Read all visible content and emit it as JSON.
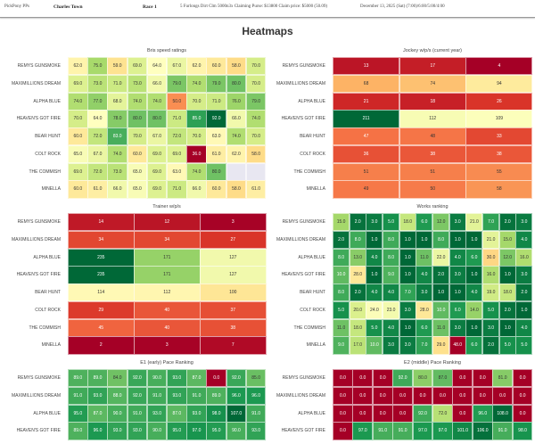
{
  "header": {
    "app": "PickPony PPs",
    "track": "Charles Town",
    "race": "Race 1",
    "conditions": "5 Furlongs Dirt Clm 5000n3x Claiming Purse: $13800 Claim price: $5000 (50.09)",
    "date": "December 13, 2025 (Sat) (7:00)/6:00/5:00/4:00"
  },
  "page_title": "Heatmaps",
  "colormap": "RdYlGn",
  "missing_color": "#e8e7f1",
  "heatmaps": [
    {
      "title": "Bris speed ratings",
      "rows": [
        "REMYS GUNSMOKE",
        "MAXIMILLIONS DREAM",
        "ALPHA BLUE",
        "HEAVEN'S GOT FIRE",
        "BEAR HUNT",
        "COLT ROCK",
        "THE COMMISH",
        "MINELLA"
      ],
      "decimals": 1,
      "reverse": false,
      "values": [
        [
          62,
          75,
          59,
          69,
          64,
          67,
          62,
          60,
          58,
          70
        ],
        [
          69,
          73,
          71,
          73,
          66,
          79,
          74,
          79,
          80,
          70
        ],
        [
          74,
          77,
          68,
          74,
          74,
          50,
          70,
          71,
          76,
          79
        ],
        [
          70,
          64,
          78,
          80,
          80,
          71,
          85,
          92,
          66,
          74
        ],
        [
          60,
          72,
          83,
          70,
          67,
          72,
          70,
          63,
          74,
          70
        ],
        [
          65,
          67,
          74,
          60,
          69,
          69,
          36,
          61,
          62,
          58
        ],
        [
          69,
          72,
          73,
          65,
          69,
          63,
          74,
          80,
          null,
          null
        ],
        [
          60,
          61,
          66,
          65,
          69,
          71,
          66,
          60,
          58,
          61
        ]
      ]
    },
    {
      "title": "Jockey w/p/s (current year)",
      "rows": [
        "REMYS GUNSMOKE",
        "MAXIMILLIONS DREAM",
        "ALPHA BLUE",
        "HEAVEN'S GOT FIRE",
        "BEAR HUNT",
        "COLT ROCK",
        "THE COMMISH",
        "MINELLA"
      ],
      "decimals": 0,
      "reverse": false,
      "values": [
        [
          13,
          17,
          4
        ],
        [
          68,
          74,
          94
        ],
        [
          21,
          18,
          26
        ],
        [
          211,
          112,
          109
        ],
        [
          47,
          48,
          33
        ],
        [
          36,
          38,
          38
        ],
        [
          51,
          51,
          55
        ],
        [
          49,
          50,
          58
        ]
      ]
    },
    {
      "title": "Trainer w/p/s",
      "rows": [
        "REMYS GUNSMOKE",
        "MAXIMILLIONS DREAM",
        "ALPHA BLUE",
        "HEAVEN'S GOT FIRE",
        "BEAR HUNT",
        "COLT ROCK",
        "THE COMMISH",
        "MINELLA"
      ],
      "decimals": 0,
      "reverse": false,
      "values": [
        [
          14,
          12,
          3
        ],
        [
          34,
          34,
          27
        ],
        [
          235,
          171,
          127
        ],
        [
          235,
          171,
          127
        ],
        [
          114,
          112,
          100
        ],
        [
          29,
          40,
          37
        ],
        [
          45,
          40,
          38
        ],
        [
          2,
          3,
          7
        ]
      ]
    },
    {
      "title": "Works ranking",
      "rows": [
        "REMYS GUNSMOKE",
        "MAXIMILLIONS DREAM",
        "ALPHA BLUE",
        "HEAVEN'S GOT FIRE",
        "BEAR HUNT",
        "COLT ROCK",
        "THE COMMISH",
        "MINELLA"
      ],
      "decimals": 1,
      "reverse": true,
      "values": [
        [
          15,
          2,
          3,
          5,
          18,
          6,
          12,
          3,
          21,
          7,
          2,
          3
        ],
        [
          2,
          8,
          1,
          8,
          1,
          1,
          8,
          1,
          1,
          21,
          15,
          4
        ],
        [
          8,
          13,
          4,
          8,
          1,
          11,
          22,
          4,
          6,
          30,
          12,
          16
        ],
        [
          10,
          28,
          1,
          9,
          1,
          4,
          2,
          3,
          1,
          16,
          1,
          3
        ],
        [
          8,
          2,
          4,
          4,
          7,
          3,
          1,
          1,
          4,
          19,
          18,
          2
        ],
        [
          5,
          20,
          24,
          23,
          3,
          28,
          10,
          6,
          14,
          5,
          2,
          1
        ],
        [
          11,
          18,
          5,
          4,
          1,
          6,
          11,
          3,
          1,
          3,
          1,
          4
        ],
        [
          9,
          17,
          10,
          3,
          3,
          7,
          29,
          48,
          6,
          2,
          5,
          5
        ]
      ]
    },
    {
      "title": "E1 (early) Pace Ranking",
      "rows": [
        "REMYS GUNSMOKE",
        "MAXIMILLIONS DREAM",
        "ALPHA BLUE",
        "HEAVEN'S GOT FIRE"
      ],
      "decimals": 1,
      "reverse": false,
      "values": [
        [
          89,
          89,
          84,
          92,
          90,
          93,
          87,
          0,
          92,
          85
        ],
        [
          91,
          93,
          88,
          92,
          91,
          93,
          91,
          89,
          96,
          96
        ],
        [
          95,
          87,
          90,
          91,
          93,
          87,
          93,
          98,
          107,
          91
        ],
        [
          89,
          96,
          93,
          93,
          90,
          95,
          97,
          95,
          90,
          93
        ]
      ]
    },
    {
      "title": "E2 (middle) Pace Ranking",
      "rows": [
        "REMYS GUNSMOKE",
        "MAXIMILLIONS DREAM",
        "ALPHA BLUE",
        "HEAVEN'S GOT FIRE"
      ],
      "decimals": 1,
      "reverse": false,
      "values": [
        [
          0,
          0,
          0,
          92,
          80,
          87,
          0,
          0,
          81,
          0
        ],
        [
          0,
          0,
          0,
          0,
          0,
          0,
          0,
          0,
          0,
          0
        ],
        [
          0,
          0,
          0,
          0,
          92,
          72,
          0,
          96,
          108,
          0
        ],
        [
          0,
          97,
          91,
          91,
          97,
          97,
          101,
          106,
          91,
          98
        ]
      ]
    }
  ]
}
